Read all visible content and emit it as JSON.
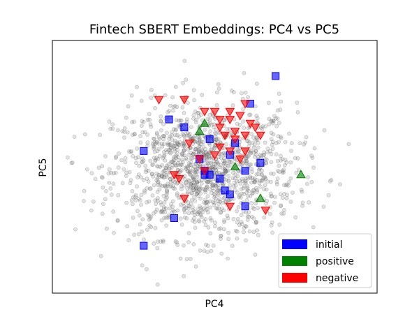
{
  "chart_data": {
    "type": "scatter",
    "title": "Fintech SBERT Embeddings: PC4 vs PC5",
    "xlabel": "PC4",
    "ylabel": "PC5",
    "xlim": [
      -3.2,
      3.2
    ],
    "ylim": [
      -3.2,
      3.2
    ],
    "ticks_shown": false,
    "grid": false,
    "legend": {
      "position": "lower-right"
    },
    "background": {
      "color": "#808080",
      "marker": "circle",
      "count": 1400,
      "center": [
        -0.2,
        -0.1
      ],
      "spread": [
        0.9,
        0.85
      ]
    },
    "series": [
      {
        "name": "initial",
        "color": "#0000ff",
        "marker": "square",
        "points": [
          [
            1.2,
            2.3
          ],
          [
            0.7,
            1.6
          ],
          [
            -0.9,
            1.2
          ],
          [
            -0.6,
            1.0
          ],
          [
            -1.4,
            0.4
          ],
          [
            -0.1,
            0.7
          ],
          [
            0.4,
            0.6
          ],
          [
            -0.3,
            0.2
          ],
          [
            -0.2,
            -0.1
          ],
          [
            -0.1,
            -0.2
          ],
          [
            0.6,
            -0.1
          ],
          [
            0.9,
            0.1
          ],
          [
            0.3,
            0.3
          ],
          [
            -0.2,
            -0.2
          ],
          [
            0.2,
            -0.6
          ],
          [
            0.1,
            -0.3
          ],
          [
            0.3,
            -0.7
          ],
          [
            0.6,
            -1.0
          ],
          [
            -0.8,
            -1.3
          ],
          [
            -1.4,
            -2.0
          ]
        ]
      },
      {
        "name": "positive",
        "color": "#008000",
        "marker": "triangle-up",
        "points": [
          [
            -0.2,
            1.1
          ],
          [
            1.7,
            -0.2
          ],
          [
            0.4,
            0.0
          ],
          [
            0.9,
            -0.8
          ],
          [
            -0.3,
            0.9
          ]
        ]
      },
      {
        "name": "negative",
        "color": "#ff0000",
        "marker": "triangle-down",
        "points": [
          [
            -1.1,
            1.7
          ],
          [
            -0.6,
            1.7
          ],
          [
            -0.2,
            1.4
          ],
          [
            0.0,
            1.4
          ],
          [
            0.3,
            1.4
          ],
          [
            0.6,
            1.6
          ],
          [
            0.7,
            1.1
          ],
          [
            0.3,
            1.2
          ],
          [
            0.5,
            1.3
          ],
          [
            0.1,
            1.0
          ],
          [
            0.4,
            0.9
          ],
          [
            0.6,
            0.8
          ],
          [
            0.9,
            0.8
          ],
          [
            0.8,
            1.0
          ],
          [
            0.4,
            0.7
          ],
          [
            0.1,
            0.5
          ],
          [
            0.3,
            0.4
          ],
          [
            -0.5,
            0.6
          ],
          [
            0.0,
            0.3
          ],
          [
            -0.3,
            0.2
          ],
          [
            0.6,
            0.4
          ],
          [
            0.5,
            0.2
          ],
          [
            -0.7,
            -0.3
          ],
          [
            -0.8,
            -0.2
          ],
          [
            -0.6,
            -0.8
          ],
          [
            0.3,
            -1.0
          ],
          [
            0.1,
            1.2
          ],
          [
            1.0,
            -1.1
          ],
          [
            -0.2,
            -0.1
          ],
          [
            0.2,
            0.8
          ]
        ]
      }
    ]
  }
}
